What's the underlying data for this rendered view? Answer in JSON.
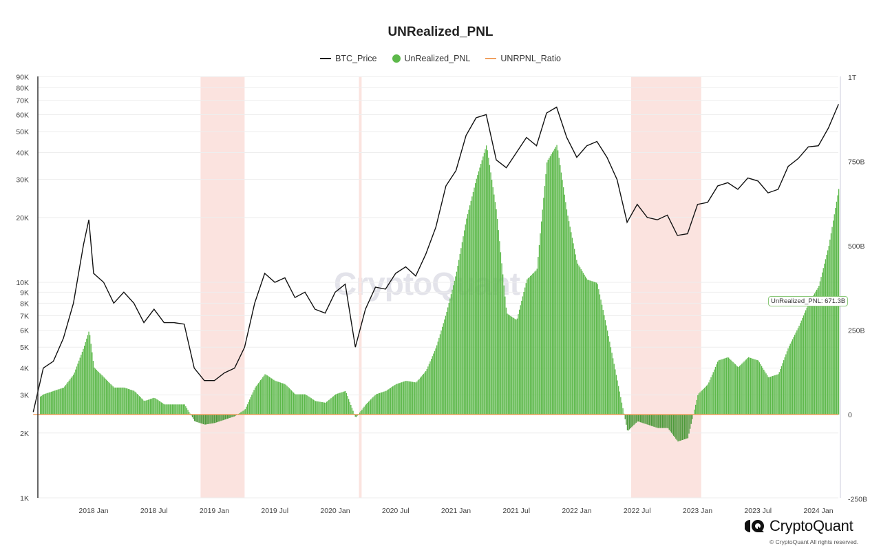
{
  "chart_data": {
    "type": "bar+line",
    "title": "UNRealized_PNL",
    "legend": {
      "placement": "top-center",
      "entries": [
        "BTC_Price",
        "UnRealized_PNL",
        "UNRPNL_Ratio"
      ]
    },
    "left_axis": {
      "scale": "log",
      "range": [
        1000,
        90000
      ],
      "ticks": [
        "1K",
        "2K",
        "3K",
        "4K",
        "5K",
        "6K",
        "7K",
        "8K",
        "9K",
        "10K",
        "20K",
        "30K",
        "40K",
        "50K",
        "60K",
        "70K",
        "80K",
        "90K"
      ],
      "tick_values": [
        1000,
        2000,
        3000,
        4000,
        5000,
        6000,
        7000,
        8000,
        9000,
        10000,
        20000,
        30000,
        40000,
        50000,
        60000,
        70000,
        80000,
        90000
      ]
    },
    "right_axis": {
      "scale": "linear",
      "unit": "B",
      "range": [
        -250,
        1000
      ],
      "ticks": [
        "-250B",
        "0",
        "250B",
        "500B",
        "750B",
        "1T"
      ],
      "tick_values": [
        -250,
        0,
        250,
        500,
        750,
        1000
      ]
    },
    "x_axis": {
      "ticks": [
        "2018 Jan",
        "2018 Jul",
        "2019 Jan",
        "2019 Jul",
        "2020 Jan",
        "2020 Jul",
        "2021 Jan",
        "2021 Jul",
        "2022 Jan",
        "2022 Jul",
        "2023 Jan",
        "2023 Jul",
        "2024 Jan"
      ],
      "tick_dates": [
        "2018-01",
        "2018-07",
        "2019-01",
        "2019-07",
        "2020-01",
        "2020-07",
        "2021-01",
        "2021-07",
        "2022-01",
        "2022-07",
        "2023-01",
        "2023-07",
        "2024-01"
      ]
    },
    "grid": true,
    "shaded_periods": [
      [
        "2018-11-20",
        "2019-04-01"
      ],
      [
        "2020-03-12",
        "2020-03-20"
      ],
      [
        "2022-06-13",
        "2023-01-12"
      ]
    ],
    "shade_color": "#fbe3df",
    "x": [
      "2017-07",
      "2017-08",
      "2017-09",
      "2017-10",
      "2017-11",
      "2017-12",
      "2017-12-17",
      "2018-01",
      "2018-02",
      "2018-03",
      "2018-04",
      "2018-05",
      "2018-06",
      "2018-07",
      "2018-08",
      "2018-09",
      "2018-10",
      "2018-11",
      "2018-12",
      "2019-01",
      "2019-02",
      "2019-03",
      "2019-04",
      "2019-05",
      "2019-06",
      "2019-07",
      "2019-08",
      "2019-09",
      "2019-10",
      "2019-11",
      "2019-12",
      "2020-01",
      "2020-02",
      "2020-03",
      "2020-04",
      "2020-05",
      "2020-06",
      "2020-07",
      "2020-08",
      "2020-09",
      "2020-10",
      "2020-11",
      "2020-12",
      "2021-01",
      "2021-02",
      "2021-03",
      "2021-04",
      "2021-05",
      "2021-06",
      "2021-07",
      "2021-08",
      "2021-09",
      "2021-10",
      "2021-11",
      "2021-12",
      "2022-01",
      "2022-02",
      "2022-03",
      "2022-04",
      "2022-05",
      "2022-06",
      "2022-07",
      "2022-08",
      "2022-09",
      "2022-10",
      "2022-11",
      "2022-12",
      "2023-01",
      "2023-02",
      "2023-03",
      "2023-04",
      "2023-05",
      "2023-06",
      "2023-07",
      "2023-08",
      "2023-09",
      "2023-10",
      "2023-11",
      "2023-12",
      "2024-01",
      "2024-02",
      "2024-03"
    ],
    "series": [
      {
        "name": "BTC_Price",
        "axis": "left",
        "type": "line",
        "color": "#111111",
        "values": [
          2500,
          4000,
          4300,
          5500,
          8000,
          15000,
          19500,
          11000,
          10000,
          8000,
          9000,
          8000,
          6500,
          7500,
          6500,
          6500,
          6400,
          4000,
          3500,
          3500,
          3800,
          4000,
          5000,
          8000,
          11000,
          10000,
          10500,
          8500,
          9000,
          7500,
          7200,
          9000,
          9800,
          5000,
          7500,
          9500,
          9300,
          11000,
          11800,
          10700,
          13500,
          18000,
          28000,
          33000,
          48000,
          58000,
          60000,
          37000,
          34000,
          40000,
          47000,
          43000,
          61000,
          65000,
          47000,
          38000,
          43000,
          45000,
          38000,
          30000,
          19000,
          23000,
          20000,
          19500,
          20500,
          16500,
          16800,
          23000,
          23500,
          28000,
          29000,
          27000,
          30500,
          29500,
          26000,
          27000,
          34500,
          37500,
          42500,
          43000,
          52000,
          67000
        ]
      },
      {
        "name": "UnRealized_PNL",
        "axis": "right",
        "type": "bar",
        "color": "#5cb84a",
        "values": [
          40,
          60,
          70,
          80,
          120,
          200,
          250,
          140,
          110,
          80,
          80,
          70,
          40,
          50,
          30,
          30,
          30,
          -20,
          -30,
          -25,
          -15,
          -5,
          15,
          80,
          120,
          100,
          90,
          60,
          60,
          40,
          35,
          60,
          70,
          -10,
          30,
          60,
          70,
          90,
          100,
          95,
          130,
          200,
          300,
          420,
          580,
          700,
          800,
          600,
          300,
          280,
          400,
          430,
          750,
          800,
          600,
          450,
          400,
          390,
          250,
          100,
          -50,
          -20,
          -30,
          -40,
          -40,
          -80,
          -70,
          60,
          90,
          160,
          170,
          140,
          170,
          160,
          110,
          120,
          200,
          260,
          330,
          380,
          500,
          671.3
        ]
      },
      {
        "name": "UNRPNL_Ratio",
        "axis": "right",
        "type": "line",
        "color": "#f0a060"
      }
    ],
    "tooltip": "UnRealized_PNL: 671.3B"
  },
  "watermark": "CryptoQuant",
  "brand": {
    "name": "CryptoQuant",
    "copyright": "© CryptoQuant All rights reserved."
  }
}
